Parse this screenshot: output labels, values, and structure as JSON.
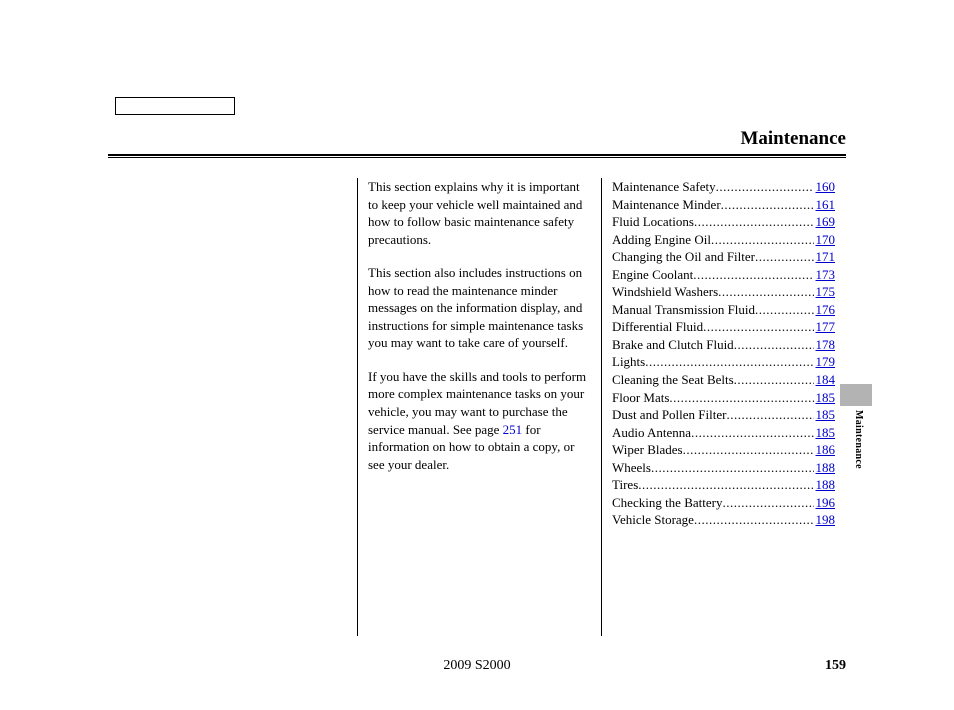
{
  "title": "Maintenance",
  "side_label": "Maintenance",
  "intro": {
    "p1": "This section explains why it is important to keep your vehicle well maintained and how to follow basic maintenance safety precautions.",
    "p2": "This section also includes instructions on how to read the maintenance minder messages on the information display, and instructions for simple maintenance tasks you may want to take care of yourself.",
    "p3a": "If you have the skills and tools to perform more complex maintenance tasks on your vehicle, you may want to purchase the service manual. See page ",
    "p3_link": "251",
    "p3b": " for information on how to obtain a copy, or see your dealer."
  },
  "toc": [
    {
      "label": "Maintenance Safety",
      "page": "160"
    },
    {
      "label": "Maintenance Minder",
      "page": "161"
    },
    {
      "label": "Fluid Locations",
      "page": "169"
    },
    {
      "label": "Adding Engine Oil",
      "page": "170"
    },
    {
      "label": "Changing the Oil and Filter",
      "page": "171"
    },
    {
      "label": "Engine Coolant",
      "page": "173"
    },
    {
      "label": "Windshield Washers",
      "page": "175"
    },
    {
      "label": "Manual Transmission Fluid",
      "page": "176"
    },
    {
      "label": "Differential Fluid",
      "page": "177"
    },
    {
      "label": "Brake and Clutch Fluid",
      "page": "178"
    },
    {
      "label": "Lights",
      "page": "179"
    },
    {
      "label": "Cleaning the Seat Belts",
      "page": "184"
    },
    {
      "label": "Floor Mats",
      "page": "185"
    },
    {
      "label": "Dust and Pollen Filter",
      "page": "185"
    },
    {
      "label": "Audio Antenna",
      "page": "185"
    },
    {
      "label": "Wiper Blades",
      "page": "186"
    },
    {
      "label": "Wheels",
      "page": "188"
    },
    {
      "label": "Tires",
      "page": "188"
    },
    {
      "label": "Checking the Battery",
      "page": "196"
    },
    {
      "label": "Vehicle Storage",
      "page": "198"
    }
  ],
  "footer": {
    "model": "2009  S2000",
    "page_number": "159"
  },
  "colors": {
    "link": "#0000cc",
    "tab_gray": "#b3b3b3"
  }
}
